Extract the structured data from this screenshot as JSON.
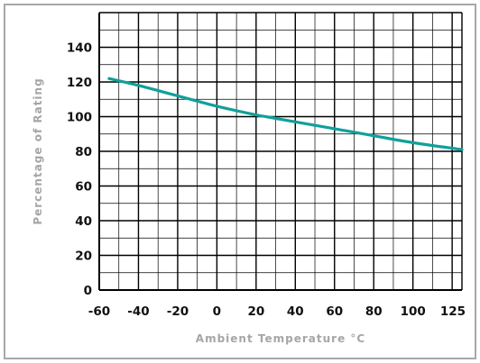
{
  "chart_data": {
    "type": "line",
    "xlabel": "Ambient Temperature °C",
    "ylabel": "Percentage of Rating",
    "xlim": [
      -60,
      125
    ],
    "ylim": [
      0,
      150
    ],
    "x_ticks": [
      "-60",
      "-40",
      "-20",
      "0",
      "20",
      "40",
      "60",
      "80",
      "100",
      "125"
    ],
    "y_ticks": [
      "0",
      "20",
      "40",
      "60",
      "80",
      "100",
      "120",
      "140"
    ],
    "grid": true,
    "colors": {
      "line": "#10a09a",
      "grid": "#000000",
      "axis_title": "#a6a6a6",
      "frame": "#a8a8a8"
    },
    "series": [
      {
        "x": [
          -55,
          -40,
          -20,
          0,
          20,
          25,
          40,
          60,
          80,
          100,
          125
        ],
        "y": [
          122,
          118,
          112,
          106,
          101,
          100,
          97,
          93,
          89,
          85,
          81
        ]
      }
    ]
  }
}
